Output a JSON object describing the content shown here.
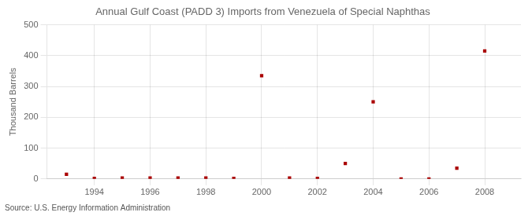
{
  "chart_data": {
    "type": "scatter",
    "title": "Annual Gulf Coast (PADD 3) Imports from Venezuela of Special Naphthas",
    "ylabel": "Thousand Barrels",
    "source": "Source: U.S. Energy Information Administration",
    "x": [
      1993,
      1994,
      1995,
      1996,
      1997,
      1998,
      1999,
      2000,
      2001,
      2002,
      2003,
      2004,
      2005,
      2006,
      2007,
      2008
    ],
    "values": [
      15,
      2,
      3,
      3,
      3,
      3,
      2,
      335,
      3,
      2,
      50,
      250,
      0,
      0,
      35,
      415
    ],
    "color": "#aa0000",
    "marker": "square",
    "xlim": [
      1992.3,
      2009.3
    ],
    "ylim": [
      0,
      500
    ],
    "xticks": [
      1994,
      1996,
      1998,
      2000,
      2002,
      2004,
      2006,
      2008
    ],
    "yticks": [
      0,
      100,
      200,
      300,
      400,
      500
    ],
    "grid": true
  }
}
